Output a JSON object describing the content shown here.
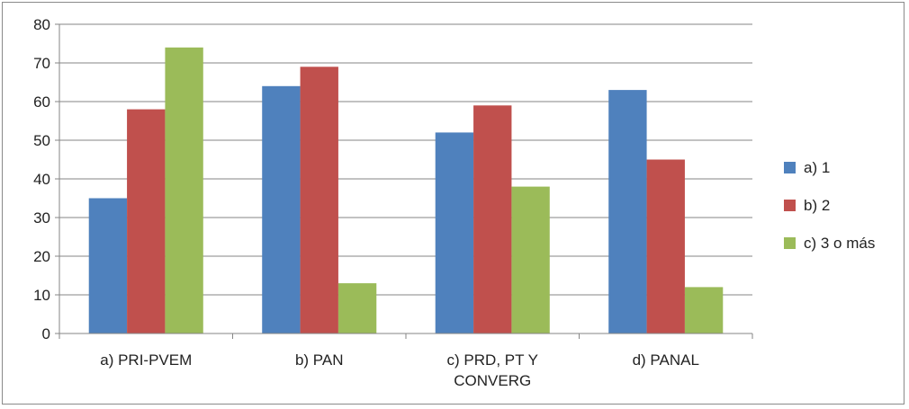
{
  "chart_data": {
    "type": "bar",
    "title": "",
    "xlabel": "",
    "ylabel": "",
    "categories": [
      [
        "a) PRI-PVEM"
      ],
      [
        "b) PAN"
      ],
      [
        "c) PRD, PT Y",
        "CONVERG"
      ],
      [
        "d) PANAL"
      ]
    ],
    "category_names": [
      "a) PRI-PVEM",
      "b) PAN",
      "c) PRD, PT Y CONVERG",
      "d) PANAL"
    ],
    "series": [
      {
        "name": "a) 1",
        "color": "#4F81BD",
        "values": [
          35,
          64,
          52,
          63
        ]
      },
      {
        "name": "b) 2",
        "color": "#C0504D",
        "values": [
          58,
          69,
          59,
          45
        ]
      },
      {
        "name": "c) 3 o más",
        "color": "#9BBB59",
        "values": [
          74,
          13,
          38,
          12
        ]
      }
    ],
    "ylim": [
      0,
      80
    ],
    "yticks": [
      0,
      10,
      20,
      30,
      40,
      50,
      60,
      70,
      80
    ],
    "grid": true,
    "legend_position": "right"
  }
}
